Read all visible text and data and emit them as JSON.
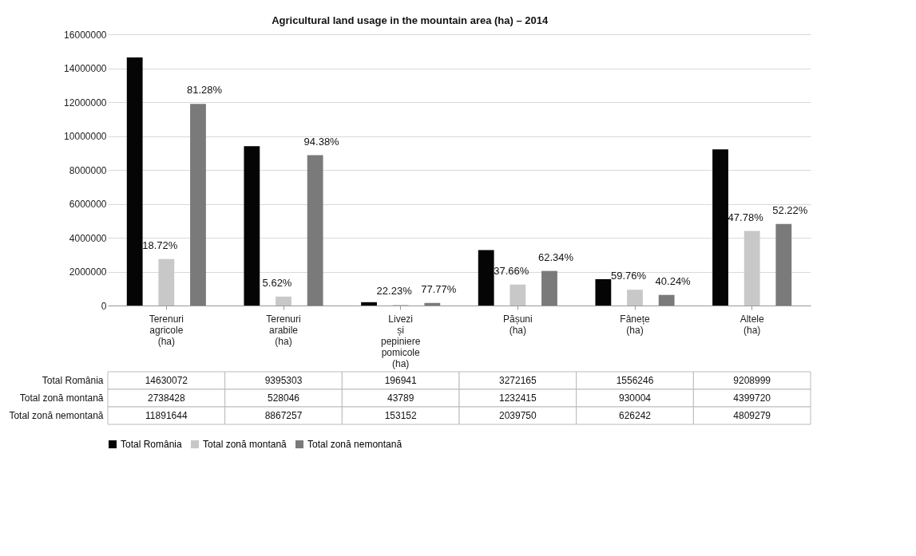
{
  "chart_data": {
    "type": "bar",
    "title": "Agricultural land usage in the mountain area (ha) – 2014",
    "categories": [
      "Terenuri agricole (ha)",
      "Terenuri arabile (ha)",
      "Livezi și pepiniere pomicole (ha)",
      "Pășuni (ha)",
      "Fânețe (ha)",
      "Altele (ha)"
    ],
    "series": [
      {
        "name": "Total România",
        "color": "#050505",
        "values": [
          14630072,
          9395303,
          196941,
          3272165,
          1556246,
          9208999
        ]
      },
      {
        "name": "Total zonă montană",
        "color": "#c8c8c8",
        "values": [
          2738428,
          528046,
          43789,
          1232415,
          930004,
          4399720
        ]
      },
      {
        "name": "Total zonă nemontană",
        "color": "#7a7a7a",
        "values": [
          11891644,
          8867257,
          153152,
          2039750,
          626242,
          4809279
        ]
      }
    ],
    "annotations": [
      {
        "text": "18.72%",
        "x": "Terenuri agricole (ha)",
        "y": 2738428
      },
      {
        "text": "5.62%",
        "x": "Terenuri arabile (ha)",
        "y": 528046
      },
      {
        "text": "22.23%",
        "x": "Livezi și pepiniere pomicole (ha)",
        "y": 43789
      },
      {
        "text": "37.66%",
        "x": "Pășuni (ha)",
        "y": 1232415
      },
      {
        "text": "59.76%",
        "x": "Fânețe (ha)",
        "y": 930004
      },
      {
        "text": "47.78%",
        "x": "Altele (ha)",
        "y": 4399720
      },
      "81.28%",
      "94.38%",
      "77.77%",
      "62.34%",
      "40.24%",
      "52.22%"
    ],
    "ylim": [
      0,
      16000000
    ],
    "yticks": [
      0,
      2000000,
      4000000,
      6000000,
      8000000,
      10000000,
      12000000,
      14000000,
      16000000
    ],
    "grid": "y",
    "legend": "bottom",
    "data_labels": true
  }
}
